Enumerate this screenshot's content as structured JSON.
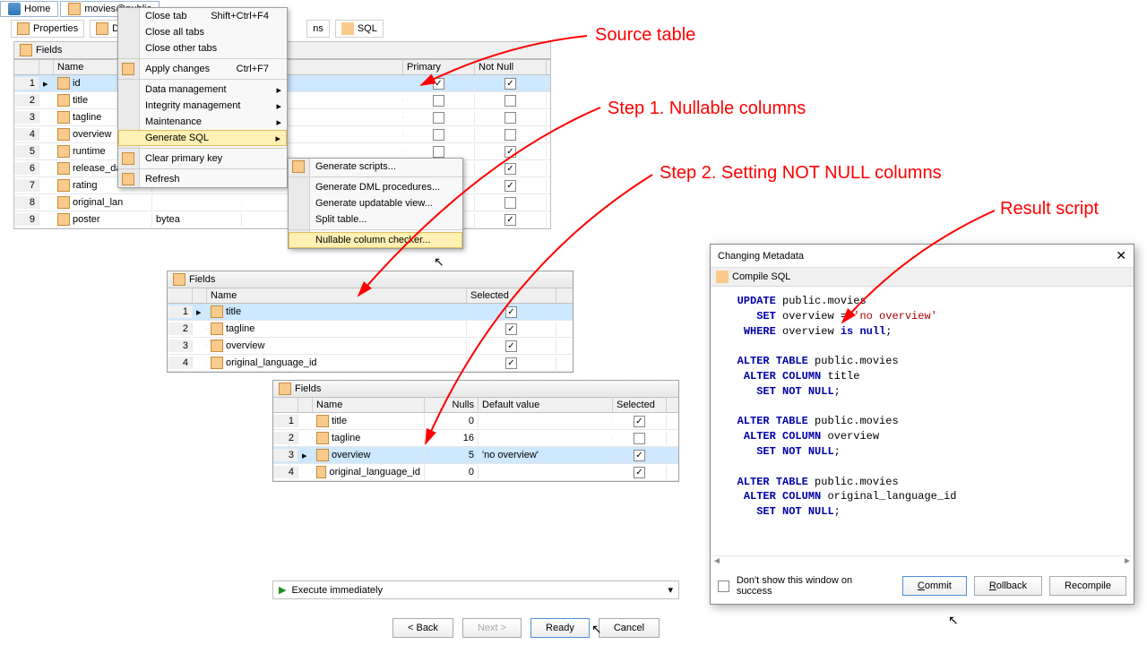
{
  "tabs": {
    "home": "Home",
    "movies": "movies@public"
  },
  "subTabs": {
    "properties": "Properties",
    "data": "Da",
    "extra": "ns",
    "sql": "SQL"
  },
  "mainGrid": {
    "header": "Fields",
    "cols": {
      "name": "Name",
      "primary": "Primary",
      "notnull": "Not Null"
    },
    "rows": [
      {
        "n": 1,
        "name": "id",
        "pk": true,
        "nn": true,
        "sel": true,
        "icon": "key"
      },
      {
        "n": 2,
        "name": "title",
        "pk": false,
        "nn": false
      },
      {
        "n": 3,
        "name": "tagline",
        "pk": false,
        "nn": false
      },
      {
        "n": 4,
        "name": "overview",
        "pk": false,
        "nn": false
      },
      {
        "n": 5,
        "name": "runtime",
        "pk": false,
        "nn": true
      },
      {
        "n": 6,
        "name": "release_da",
        "pk": false,
        "nn": true
      },
      {
        "n": 7,
        "name": "rating",
        "pk": false,
        "nn": true
      },
      {
        "n": 8,
        "name": "original_lan",
        "pk": false,
        "nn": false
      },
      {
        "n": 9,
        "name": "poster",
        "pk": false,
        "nn": true,
        "extra": "bytea"
      }
    ]
  },
  "contextMenu1": [
    {
      "label": "Close tab",
      "shortcut": "Shift+Ctrl+F4"
    },
    {
      "label": "Close all tabs"
    },
    {
      "label": "Close other tabs"
    },
    {
      "sep": true
    },
    {
      "label": "Apply changes",
      "shortcut": "Ctrl+F7",
      "icon": "apply"
    },
    {
      "sep": true
    },
    {
      "label": "Data management",
      "sub": true
    },
    {
      "label": "Integrity management",
      "sub": true
    },
    {
      "label": "Maintenance",
      "sub": true
    },
    {
      "label": "Generate SQL",
      "sub": true,
      "hi": true
    },
    {
      "sep": true
    },
    {
      "label": "Clear primary key",
      "icon": "clearkey"
    },
    {
      "sep": true
    },
    {
      "label": "Refresh",
      "icon": "refresh"
    }
  ],
  "contextMenu2": [
    {
      "label": "Generate scripts...",
      "icon": "script"
    },
    {
      "sep": true
    },
    {
      "label": "Generate DML procedures..."
    },
    {
      "label": "Generate updatable view..."
    },
    {
      "label": "Split table..."
    },
    {
      "sep": true
    },
    {
      "label": "Nullable column checker...",
      "hi": true
    }
  ],
  "step1Grid": {
    "header": "Fields",
    "cols": {
      "name": "Name",
      "selected": "Selected"
    },
    "rows": [
      {
        "n": 1,
        "name": "title",
        "sel": true,
        "cur": true
      },
      {
        "n": 2,
        "name": "tagline",
        "sel": true
      },
      {
        "n": 3,
        "name": "overview",
        "sel": true
      },
      {
        "n": 4,
        "name": "original_language_id",
        "sel": true
      }
    ]
  },
  "step2Grid": {
    "header": "Fields",
    "cols": {
      "name": "Name",
      "nulls": "Nulls",
      "default": "Default value",
      "selected": "Selected"
    },
    "rows": [
      {
        "n": 1,
        "name": "title",
        "nulls": 0,
        "def": "",
        "sel": true
      },
      {
        "n": 2,
        "name": "tagline",
        "nulls": 16,
        "def": "",
        "sel": false
      },
      {
        "n": 3,
        "name": "overview",
        "nulls": 5,
        "def": "'no overview'",
        "sel": true,
        "cur": true
      },
      {
        "n": 4,
        "name": "original_language_id",
        "nulls": 0,
        "def": "",
        "sel": true
      }
    ]
  },
  "executeBar": "Execute immediately",
  "wizard": {
    "back": "< Back",
    "next": "Next >",
    "ready": "Ready",
    "cancel": "Cancel"
  },
  "dialog": {
    "title": "Changing Metadata",
    "compile": "Compile SQL",
    "sql": "   UPDATE public.movies\n      SET overview = 'no overview'\n    WHERE overview is null;\n\n   ALTER TABLE public.movies\n    ALTER COLUMN title\n      SET NOT NULL;\n\n   ALTER TABLE public.movies\n    ALTER COLUMN overview\n      SET NOT NULL;\n\n   ALTER TABLE public.movies\n    ALTER COLUMN original_language_id\n      SET NOT NULL;",
    "dontShow": "Don't show this window on success",
    "commit": "Commit",
    "rollback": "Rollback",
    "recompile": "Recompile"
  },
  "annotations": {
    "source": "Source table",
    "step1": "Step 1. Nullable columns",
    "step2": "Step 2. Setting NOT NULL columns",
    "result": "Result script"
  },
  "colors": {
    "highlight": "#fff0b3",
    "selRow": "#cde8ff",
    "red": "#ff0000"
  }
}
